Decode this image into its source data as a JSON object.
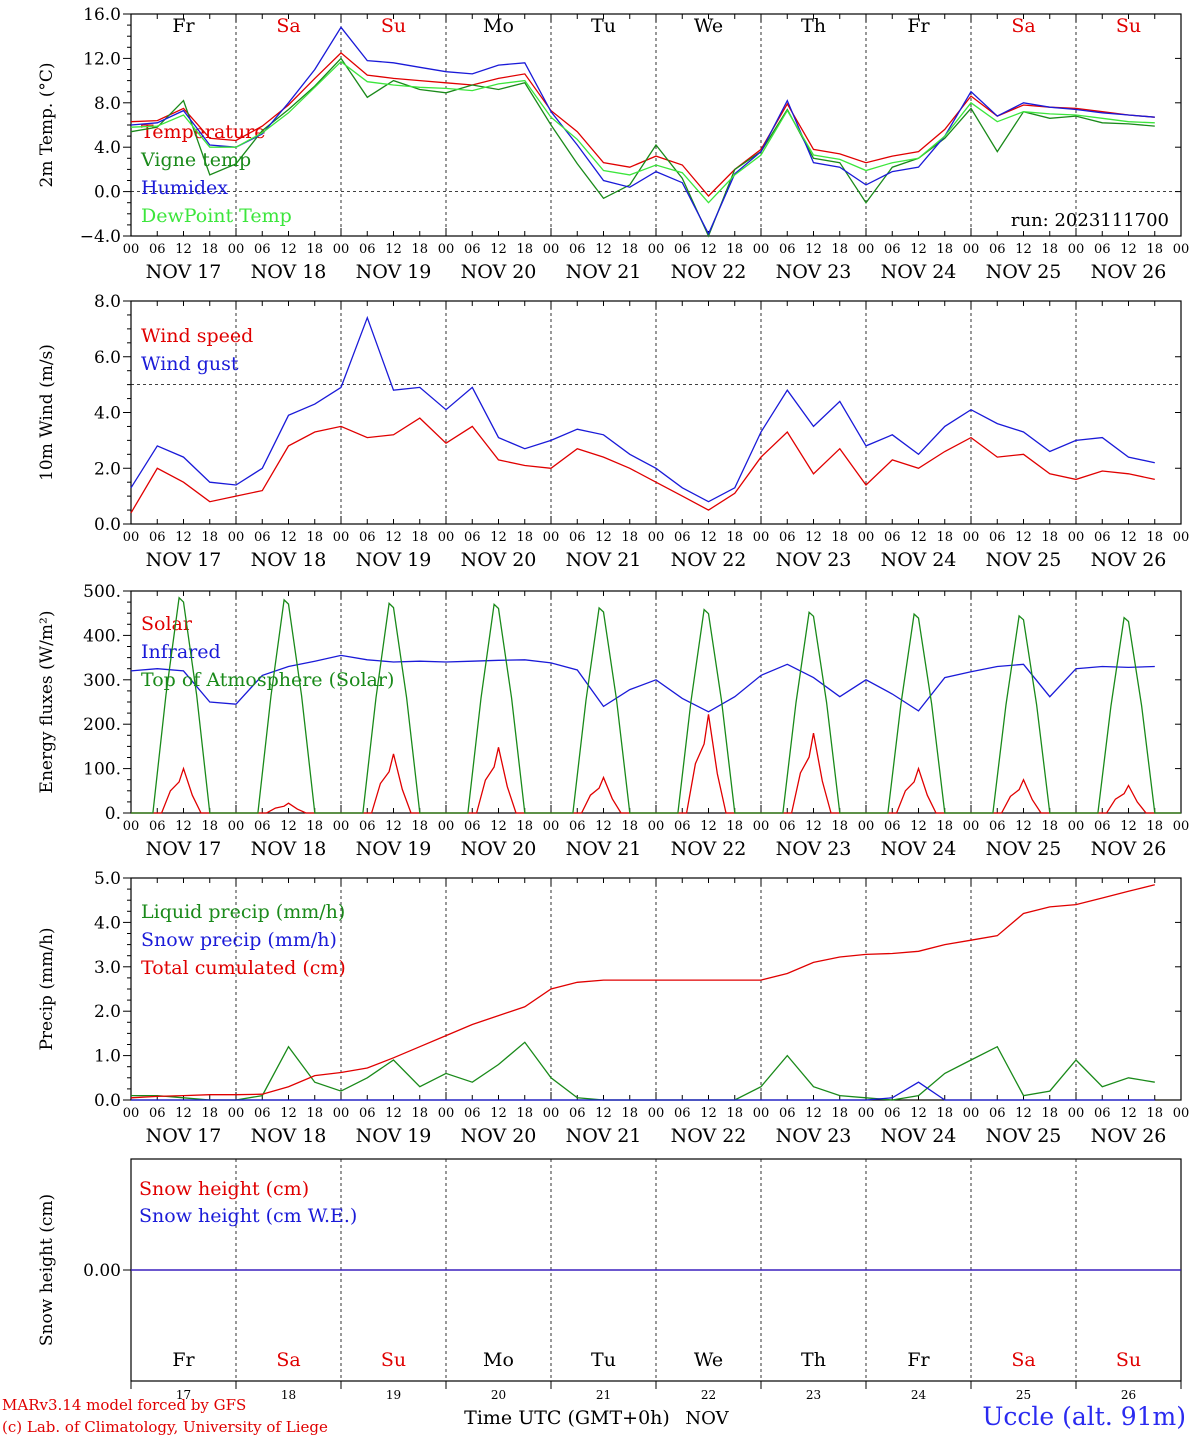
{
  "chart_data": [
    {
      "type": "line",
      "ylabel": "2m Temp. (°C)",
      "ylim": [
        -4.0,
        16.0
      ],
      "ytick_labels": [
        "16.0",
        "12.0",
        "8.0",
        "4.0",
        "0.0",
        "−4.0"
      ],
      "ytick_values": [
        16,
        12,
        8,
        4,
        0,
        -4
      ],
      "reference_line": 0,
      "run_label": "run: 2023111700",
      "x": [
        0,
        6,
        12,
        18,
        24,
        30,
        36,
        42,
        48,
        54,
        60,
        66,
        72,
        78,
        84,
        90,
        96,
        102,
        108,
        114,
        120,
        126,
        132,
        138,
        144,
        150,
        156,
        162,
        168,
        174,
        180,
        186,
        192,
        198,
        204,
        210,
        216,
        222,
        228,
        234
      ],
      "series": [
        {
          "name": "Temperature",
          "color": "#e00000",
          "values": [
            6.3,
            6.4,
            7.5,
            4.8,
            4.6,
            5.9,
            7.8,
            10.2,
            12.5,
            10.5,
            10.2,
            10.0,
            9.8,
            9.6,
            10.2,
            10.6,
            7.3,
            5.4,
            2.6,
            2.2,
            3.2,
            2.4,
            -0.4,
            2.0,
            3.8,
            7.9,
            3.8,
            3.4,
            2.6,
            3.2,
            3.6,
            5.6,
            8.6,
            6.8,
            7.8,
            7.6,
            7.5,
            7.2,
            6.9,
            6.7
          ]
        },
        {
          "name": "Vigne temp",
          "color": "#1a8a1a",
          "values": [
            5.4,
            5.8,
            8.2,
            1.5,
            2.5,
            5.5,
            7.4,
            9.5,
            12.0,
            8.5,
            10.0,
            9.2,
            8.9,
            9.6,
            9.2,
            9.8,
            6.0,
            2.5,
            -0.6,
            0.6,
            4.2,
            1.2,
            -4.0,
            2.0,
            3.6,
            7.4,
            3.0,
            2.6,
            -1.0,
            2.2,
            3.0,
            4.8,
            7.5,
            3.6,
            7.2,
            6.6,
            6.8,
            6.2,
            6.1,
            5.9
          ]
        },
        {
          "name": "Humidex",
          "color": "#1a1ad8",
          "values": [
            6.0,
            6.2,
            7.3,
            4.2,
            4.0,
            5.2,
            8.0,
            11.0,
            14.8,
            11.8,
            11.6,
            11.2,
            10.8,
            10.6,
            11.4,
            11.6,
            7.2,
            4.2,
            1.0,
            0.4,
            1.8,
            0.8,
            -3.8,
            1.6,
            3.6,
            8.2,
            2.6,
            2.2,
            0.6,
            1.8,
            2.2,
            5.0,
            9.0,
            6.8,
            8.0,
            7.6,
            7.4,
            7.1,
            6.9,
            6.7
          ]
        },
        {
          "name": "DewPoint Temp",
          "color": "#3ce63c",
          "values": [
            5.8,
            5.9,
            6.9,
            4.0,
            4.0,
            5.3,
            7.1,
            9.4,
            11.7,
            9.9,
            9.6,
            9.4,
            9.3,
            9.1,
            9.7,
            10.0,
            6.7,
            4.7,
            1.9,
            1.5,
            2.4,
            1.7,
            -1.0,
            1.5,
            3.3,
            7.3,
            3.3,
            2.9,
            1.9,
            2.6,
            3.0,
            5.0,
            8.0,
            6.3,
            7.2,
            7.0,
            6.9,
            6.6,
            6.3,
            6.2
          ]
        }
      ]
    },
    {
      "type": "line",
      "ylabel": "10m Wind (m/s)",
      "ylim": [
        0.0,
        8.0
      ],
      "ytick_labels": [
        "8.0",
        "6.0",
        "4.0",
        "2.0",
        "0.0"
      ],
      "ytick_values": [
        8,
        6,
        4,
        2,
        0
      ],
      "reference_line": 5.0,
      "x": [
        0,
        6,
        12,
        18,
        24,
        30,
        36,
        42,
        48,
        54,
        60,
        66,
        72,
        78,
        84,
        90,
        96,
        102,
        108,
        114,
        120,
        126,
        132,
        138,
        144,
        150,
        156,
        162,
        168,
        174,
        180,
        186,
        192,
        198,
        204,
        210,
        216,
        222,
        228,
        234
      ],
      "series": [
        {
          "name": "Wind speed",
          "color": "#e00000",
          "values": [
            0.4,
            2.0,
            1.5,
            0.8,
            1.0,
            1.2,
            2.8,
            3.3,
            3.5,
            3.1,
            3.2,
            3.8,
            2.9,
            3.5,
            2.3,
            2.1,
            2.0,
            2.7,
            2.4,
            2.0,
            1.5,
            1.0,
            0.5,
            1.1,
            2.4,
            3.3,
            1.8,
            2.7,
            1.4,
            2.3,
            2.0,
            2.6,
            3.1,
            2.4,
            2.5,
            1.8,
            1.6,
            1.9,
            1.8,
            1.6
          ]
        },
        {
          "name": "Wind gust",
          "color": "#1a1ad8",
          "values": [
            1.3,
            2.8,
            2.4,
            1.5,
            1.4,
            2.0,
            3.9,
            4.3,
            4.9,
            7.4,
            4.8,
            4.9,
            4.1,
            4.9,
            3.1,
            2.7,
            3.0,
            3.4,
            3.2,
            2.5,
            2.0,
            1.3,
            0.8,
            1.3,
            3.3,
            4.8,
            3.5,
            4.4,
            2.8,
            3.2,
            2.5,
            3.5,
            4.1,
            3.6,
            3.3,
            2.6,
            3.0,
            3.1,
            2.4,
            2.2
          ]
        }
      ]
    },
    {
      "type": "line",
      "ylabel": "Energy fluxes (W/m²)",
      "ylim": [
        0,
        500
      ],
      "ytick_labels": [
        "500.",
        "400.",
        "300.",
        "200.",
        "100.",
        "0."
      ],
      "ytick_values": [
        500,
        400,
        300,
        200,
        100,
        0
      ],
      "series": [
        {
          "name": "Solar",
          "color": "#e00000",
          "daily_peak_values": [
            100,
            22,
            133,
            148,
            80,
            222,
            180,
            100,
            75,
            62
          ]
        },
        {
          "name": "Infrared",
          "color": "#1a1ad8",
          "x": [
            0,
            6,
            12,
            18,
            24,
            30,
            36,
            42,
            48,
            54,
            60,
            66,
            72,
            78,
            84,
            90,
            96,
            102,
            108,
            114,
            120,
            126,
            132,
            138,
            144,
            150,
            156,
            162,
            168,
            174,
            180,
            186,
            192,
            198,
            204,
            210,
            216,
            222,
            228,
            234
          ],
          "values": [
            320,
            325,
            320,
            250,
            245,
            310,
            330,
            342,
            355,
            345,
            340,
            342,
            340,
            342,
            344,
            345,
            338,
            322,
            240,
            278,
            300,
            258,
            228,
            262,
            310,
            335,
            305,
            262,
            300,
            268,
            230,
            305,
            318,
            330,
            335,
            262,
            325,
            330,
            328,
            330
          ]
        },
        {
          "name": "Top of Atmosphere (Solar)",
          "color": "#1a8a1a",
          "daily_peak_values": [
            485,
            480,
            472,
            470,
            462,
            458,
            452,
            448,
            444,
            440
          ]
        }
      ]
    },
    {
      "type": "line",
      "ylabel": "Precip (mm/h)",
      "ylim": [
        0.0,
        5.0
      ],
      "ytick_labels": [
        "5.0",
        "4.0",
        "3.0",
        "2.0",
        "1.0",
        "0.0"
      ],
      "ytick_values": [
        5,
        4,
        3,
        2,
        1,
        0
      ],
      "x": [
        0,
        6,
        12,
        18,
        24,
        30,
        36,
        42,
        48,
        54,
        60,
        66,
        72,
        78,
        84,
        90,
        96,
        102,
        108,
        114,
        120,
        126,
        132,
        138,
        144,
        150,
        156,
        162,
        168,
        174,
        180,
        186,
        192,
        198,
        204,
        210,
        216,
        222,
        228,
        234
      ],
      "series": [
        {
          "name": "Liquid precip (mm/h)",
          "color": "#1a8a1a",
          "values": [
            0.1,
            0.1,
            0.05,
            0.0,
            0.0,
            0.1,
            1.2,
            0.4,
            0.2,
            0.5,
            0.9,
            0.3,
            0.6,
            0.4,
            0.8,
            1.3,
            0.5,
            0.05,
            0.0,
            0.0,
            0.0,
            0.0,
            0.0,
            0.0,
            0.3,
            1.0,
            0.3,
            0.1,
            0.05,
            0.0,
            0.1,
            0.6,
            0.9,
            1.2,
            0.1,
            0.2,
            0.9,
            0.3,
            0.5,
            0.4
          ]
        },
        {
          "name": "Snow precip (mm/h)",
          "color": "#1a1ad8",
          "values": [
            0.0,
            0.0,
            0.0,
            0.0,
            0.0,
            0.0,
            0.0,
            0.0,
            0.0,
            0.0,
            0.0,
            0.0,
            0.0,
            0.0,
            0.0,
            0.0,
            0.0,
            0.0,
            0.0,
            0.0,
            0.0,
            0.0,
            0.0,
            0.0,
            0.0,
            0.0,
            0.0,
            0.0,
            0.0,
            0.05,
            0.4,
            0.0,
            0.0,
            0.0,
            0.0,
            0.0,
            0.0,
            0.0,
            0.0,
            0.0
          ]
        },
        {
          "name": "Total cumulated (cm)",
          "color": "#e00000",
          "values": [
            0.05,
            0.08,
            0.1,
            0.12,
            0.12,
            0.13,
            0.3,
            0.55,
            0.62,
            0.72,
            0.95,
            1.2,
            1.45,
            1.7,
            1.9,
            2.1,
            2.5,
            2.65,
            2.7,
            2.7,
            2.7,
            2.7,
            2.7,
            2.7,
            2.7,
            2.85,
            3.1,
            3.22,
            3.28,
            3.3,
            3.35,
            3.5,
            3.6,
            3.7,
            4.2,
            4.35,
            4.4,
            4.55,
            4.7,
            4.85
          ]
        }
      ]
    },
    {
      "type": "line",
      "ylabel": "Snow height (cm)",
      "ytick_labels": [
        "0.00"
      ],
      "ytick_values": [
        0
      ],
      "series": [
        {
          "name": "Snow height (cm)",
          "color": "#e00000",
          "values": [
            0.0,
            0.0
          ]
        },
        {
          "name": "Snow height (cm W.E.)",
          "color": "#1a1ad8",
          "values": [
            0.0,
            0.0
          ]
        }
      ]
    }
  ],
  "time_axis": {
    "hour_ticks": [
      "00",
      "06",
      "12",
      "18"
    ],
    "final_tick": "00",
    "dates": [
      "NOV 17",
      "NOV 18",
      "NOV 19",
      "NOV 20",
      "NOV 21",
      "NOV 22",
      "NOV 23",
      "NOV 24",
      "NOV 25",
      "NOV 26"
    ],
    "weekdays": [
      "Fr",
      "Sa",
      "Su",
      "Mo",
      "Tu",
      "We",
      "Th",
      "Fr",
      "Sa",
      "Su"
    ],
    "weekend_flags": [
      false,
      true,
      true,
      false,
      false,
      false,
      false,
      false,
      true,
      true
    ],
    "day_numbers": [
      "17",
      "18",
      "19",
      "20",
      "21",
      "22",
      "23",
      "24",
      "25",
      "26"
    ],
    "xlabel": "Time UTC (GMT+0h)",
    "month": "NOV"
  },
  "footer": {
    "model_line": "MARv3.14 model forced by GFS",
    "credit_line": "(c) Lab. of Climatology, University of Liege",
    "station": "Uccle (alt. 91m)"
  },
  "colors": {
    "weekday_text": "#000000",
    "weekend_text": "#e00000",
    "station_text": "#2a2af0"
  }
}
